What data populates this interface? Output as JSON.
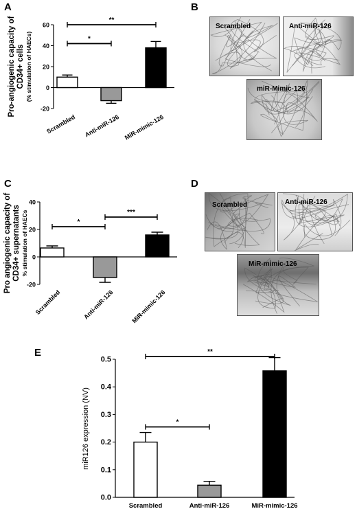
{
  "panels": {
    "A": {
      "letter": "A"
    },
    "B": {
      "letter": "B",
      "images": [
        {
          "label": "Scrambled"
        },
        {
          "label": "Anti-miR-126"
        },
        {
          "label": "miR-Mimic-126"
        }
      ]
    },
    "C": {
      "letter": "C"
    },
    "D": {
      "letter": "D",
      "images": [
        {
          "label": "Scrambled"
        },
        {
          "label": "Anti-miR-126"
        },
        {
          "label": "MiR-mimic-126"
        }
      ]
    },
    "E": {
      "letter": "E"
    }
  },
  "colors": {
    "scrambled": "#ffffff",
    "anti": "#999999",
    "mimic": "#000000",
    "axis": "#000000"
  },
  "chart_data": [
    {
      "panel": "A",
      "type": "bar",
      "categories": [
        "Scrambled",
        "Anti-miR-126",
        "MiR-mimic-126"
      ],
      "values": [
        10,
        -12.5,
        38
      ],
      "errors": [
        2,
        2.5,
        6
      ],
      "ylabel": "Pro-angiogenic capacity of CD34+ cells",
      "ylabel_sub": "(% stimulation of HAECs)",
      "ylim": [
        -20,
        60
      ],
      "yticks": [
        -20,
        0,
        20,
        40,
        60
      ],
      "significance": [
        {
          "from": 0,
          "to": 1,
          "label": "*",
          "y": 42
        },
        {
          "from": 0,
          "to": 2,
          "label": "**",
          "y": 60
        }
      ]
    },
    {
      "panel": "C",
      "type": "bar",
      "categories": [
        "Scrambled",
        "Anti-miR-126",
        "MiR-mimic-126"
      ],
      "values": [
        6.5,
        -15,
        16
      ],
      "errors": [
        1.5,
        3.5,
        2
      ],
      "ylabel": "Pro angiogenic capacity of CD34+ supernatants",
      "ylabel_sub": "% stimulation of HAECs",
      "ylim": [
        -20,
        40
      ],
      "yticks": [
        -20,
        0,
        20,
        40
      ],
      "significance": [
        {
          "from": 0,
          "to": 1,
          "label": "*",
          "y": 22
        },
        {
          "from": 1,
          "to": 2,
          "label": "***",
          "y": 29
        }
      ]
    },
    {
      "panel": "E",
      "type": "bar",
      "categories": [
        "Scrambled",
        "Anti-miR-126",
        "MiR-mimic-126"
      ],
      "values": [
        0.2,
        0.044,
        0.458
      ],
      "errors": [
        0.035,
        0.014,
        0.048
      ],
      "ylabel": "miR126 expression (NV)",
      "ylim": [
        0,
        0.5
      ],
      "yticks": [
        "0.0",
        "0.1",
        "0.2",
        "0.3",
        "0.4",
        "0.5"
      ],
      "significance": [
        {
          "from": 0,
          "to": 1,
          "label": "*",
          "y": 0.255
        },
        {
          "from": 0,
          "to": 2,
          "label": "**",
          "y": 0.51
        }
      ]
    }
  ]
}
